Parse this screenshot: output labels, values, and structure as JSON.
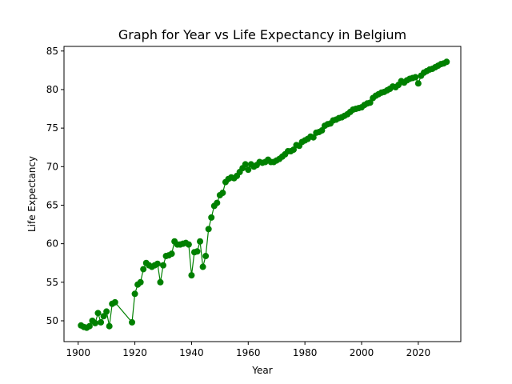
{
  "chart_data": {
    "type": "line",
    "title": "Graph for Year vs Life Expectancy in Belgium",
    "xlabel": "Year",
    "ylabel": "Life Expectancy",
    "xlim": [
      1895,
      2035
    ],
    "ylim": [
      47.3,
      85.6
    ],
    "xticks": [
      1900,
      1920,
      1940,
      1960,
      1980,
      2000,
      2020
    ],
    "yticks": [
      50,
      55,
      60,
      65,
      70,
      75,
      80,
      85
    ],
    "grid": false,
    "legend": "none",
    "series": [
      {
        "color": "#008000",
        "marker": "circle",
        "x": [
          1901,
          1902,
          1903,
          1904,
          1905,
          1906,
          1907,
          1908,
          1909,
          1910,
          1911,
          1912,
          1913,
          1919,
          1920,
          1921,
          1922,
          1923,
          1924,
          1925,
          1926,
          1927,
          1928,
          1929,
          1930,
          1931,
          1932,
          1933,
          1934,
          1935,
          1936,
          1937,
          1938,
          1939,
          1940,
          1941,
          1942,
          1943,
          1944,
          1945,
          1946,
          1947,
          1948,
          1949,
          1950,
          1951,
          1952,
          1953,
          1954,
          1955,
          1956,
          1957,
          1958,
          1959,
          1960,
          1961,
          1962,
          1963,
          1964,
          1965,
          1966,
          1967,
          1968,
          1969,
          1970,
          1971,
          1972,
          1973,
          1974,
          1975,
          1976,
          1977,
          1978,
          1979,
          1980,
          1981,
          1982,
          1983,
          1984,
          1985,
          1986,
          1987,
          1988,
          1989,
          1990,
          1991,
          1992,
          1993,
          1994,
          1995,
          1996,
          1997,
          1998,
          1999,
          2000,
          2001,
          2002,
          2003,
          2004,
          2005,
          2006,
          2007,
          2008,
          2009,
          2010,
          2011,
          2012,
          2013,
          2014,
          2015,
          2016,
          2017,
          2018,
          2019,
          2020,
          2021,
          2022,
          2023,
          2024,
          2025,
          2026,
          2027,
          2028,
          2029,
          2030
        ],
        "y": [
          49.4,
          49.2,
          49.1,
          49.3,
          50.0,
          49.7,
          51.0,
          49.8,
          50.6,
          51.2,
          49.3,
          52.2,
          52.4,
          49.8,
          53.5,
          54.7,
          55.0,
          56.7,
          57.5,
          57.2,
          57.0,
          57.2,
          57.4,
          55.0,
          57.2,
          58.4,
          58.5,
          58.7,
          60.3,
          59.9,
          59.9,
          60.0,
          60.1,
          59.9,
          55.9,
          58.9,
          59.0,
          60.3,
          57.0,
          58.4,
          61.9,
          63.4,
          64.9,
          65.3,
          66.3,
          66.6,
          68.0,
          68.4,
          68.6,
          68.5,
          68.8,
          69.3,
          69.8,
          70.3,
          69.6,
          70.3,
          70.0,
          70.2,
          70.6,
          70.5,
          70.6,
          70.9,
          70.6,
          70.6,
          70.8,
          71.0,
          71.3,
          71.6,
          72.0,
          72.0,
          72.2,
          72.8,
          72.7,
          73.2,
          73.4,
          73.6,
          73.9,
          73.8,
          74.4,
          74.5,
          74.7,
          75.3,
          75.5,
          75.6,
          76.0,
          76.1,
          76.3,
          76.4,
          76.6,
          76.8,
          77.1,
          77.4,
          77.5,
          77.6,
          77.7,
          78.0,
          78.2,
          78.3,
          78.9,
          79.2,
          79.4,
          79.6,
          79.7,
          79.9,
          80.1,
          80.4,
          80.3,
          80.6,
          81.1,
          80.9,
          81.2,
          81.4,
          81.5,
          81.6,
          80.8,
          81.8,
          82.2,
          82.4,
          82.6,
          82.7,
          82.9,
          83.1,
          83.3,
          83.4,
          83.6
        ]
      }
    ]
  }
}
